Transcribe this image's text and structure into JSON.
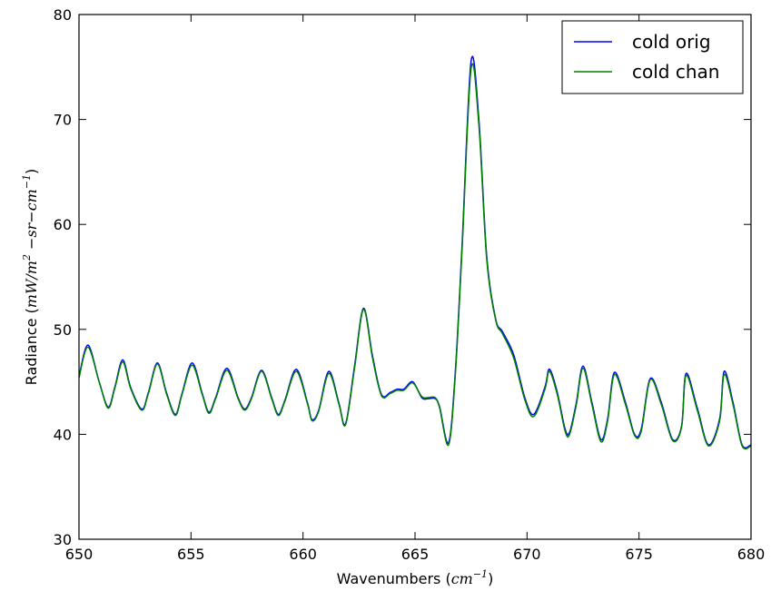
{
  "chart_data": {
    "type": "line",
    "xlabel_text": "Wavenumbers (",
    "xlabel_math": "cm",
    "xlabel_sup": "−1",
    "xlabel_close": ")",
    "ylabel_text": "Radiance (",
    "ylabel_math": "mW/m",
    "ylabel_sup1": "2",
    "ylabel_math2": " −sr−cm",
    "ylabel_sup2": "−1",
    "ylabel_close": ")",
    "xlim": [
      650,
      680
    ],
    "ylim": [
      30,
      80
    ],
    "xticks": [
      650,
      655,
      660,
      665,
      670,
      675,
      680
    ],
    "yticks": [
      30,
      40,
      50,
      60,
      70,
      80
    ],
    "xtick_labels": [
      "650",
      "655",
      "660",
      "665",
      "670",
      "675",
      "680"
    ],
    "ytick_labels": [
      "30",
      "40",
      "50",
      "60",
      "70",
      "80"
    ],
    "grid": false,
    "legend_position": "top-right",
    "series": [
      {
        "name": "cold orig",
        "color": "#0000ff",
        "x": [
          650.0,
          650.4,
          650.9,
          651.3,
          651.6,
          651.95,
          652.3,
          652.8,
          653.1,
          653.5,
          653.9,
          654.3,
          654.6,
          655.05,
          655.5,
          655.8,
          656.1,
          656.6,
          657.1,
          657.4,
          657.7,
          658.15,
          658.6,
          658.9,
          659.2,
          659.7,
          660.2,
          660.4,
          660.7,
          661.15,
          661.6,
          661.9,
          662.3,
          662.7,
          663.1,
          663.5,
          663.9,
          664.2,
          664.5,
          664.9,
          665.3,
          665.6,
          665.9,
          666.1,
          666.5,
          666.8,
          667.1,
          667.5,
          667.85,
          668.2,
          668.6,
          668.9,
          669.4,
          669.9,
          670.3,
          670.8,
          671.0,
          671.35,
          671.7,
          671.9,
          672.2,
          672.5,
          672.9,
          673.3,
          673.6,
          673.9,
          674.4,
          674.8,
          675.1,
          675.5,
          676.0,
          676.5,
          676.9,
          677.1,
          677.6,
          678.1,
          678.6,
          678.8,
          679.2,
          679.6,
          680.0
        ],
        "y": [
          45.5,
          48.5,
          45.0,
          42.6,
          44.5,
          47.1,
          44.5,
          42.4,
          44.0,
          46.8,
          44.0,
          41.9,
          43.9,
          46.8,
          43.9,
          42.1,
          43.5,
          46.3,
          43.5,
          42.4,
          43.5,
          46.1,
          43.5,
          41.9,
          43.3,
          46.2,
          43.0,
          41.4,
          42.3,
          46.0,
          43.0,
          41.0,
          46.5,
          52.0,
          47.5,
          43.8,
          44.0,
          44.3,
          44.3,
          45.0,
          43.5,
          43.4,
          43.4,
          42.6,
          39.2,
          46.0,
          58.0,
          75.5,
          70.0,
          57.0,
          51.0,
          49.8,
          47.6,
          43.5,
          41.9,
          44.5,
          46.2,
          44.0,
          40.5,
          40.2,
          43.0,
          46.5,
          43.0,
          39.5,
          41.5,
          45.9,
          43.0,
          40.0,
          40.5,
          45.3,
          43.0,
          39.5,
          40.8,
          45.8,
          42.5,
          39.0,
          41.5,
          46.0,
          43.0,
          39.0,
          39.0
        ]
      },
      {
        "name": "cold chan",
        "color": "#008000",
        "x": [
          650.0,
          650.4,
          650.9,
          651.3,
          651.6,
          651.95,
          652.3,
          652.8,
          653.1,
          653.5,
          653.9,
          654.3,
          654.6,
          655.05,
          655.5,
          655.8,
          656.1,
          656.6,
          657.1,
          657.4,
          657.7,
          658.15,
          658.6,
          658.9,
          659.2,
          659.7,
          660.2,
          660.4,
          660.7,
          661.15,
          661.6,
          661.9,
          662.3,
          662.7,
          663.1,
          663.5,
          663.9,
          664.2,
          664.5,
          664.9,
          665.3,
          665.6,
          665.9,
          666.1,
          666.5,
          666.8,
          667.1,
          667.5,
          667.85,
          668.2,
          668.6,
          668.9,
          669.4,
          669.9,
          670.3,
          670.8,
          671.0,
          671.35,
          671.7,
          671.9,
          672.2,
          672.5,
          672.9,
          673.3,
          673.6,
          673.9,
          674.4,
          674.8,
          675.1,
          675.5,
          676.0,
          676.5,
          676.9,
          677.1,
          677.6,
          678.1,
          678.6,
          678.8,
          679.2,
          679.6,
          680.0
        ],
        "y": [
          45.4,
          48.3,
          45.0,
          42.5,
          44.4,
          46.9,
          44.4,
          42.3,
          43.9,
          46.7,
          43.9,
          41.8,
          43.8,
          46.6,
          43.8,
          42.0,
          43.4,
          46.1,
          43.4,
          42.3,
          43.4,
          46.0,
          43.4,
          41.8,
          43.2,
          46.0,
          42.9,
          41.3,
          42.2,
          45.8,
          42.9,
          40.9,
          46.3,
          51.9,
          47.3,
          43.7,
          43.9,
          44.2,
          44.2,
          44.9,
          43.6,
          43.5,
          43.5,
          42.5,
          39.0,
          45.7,
          57.6,
          74.8,
          69.5,
          56.7,
          50.9,
          49.6,
          47.3,
          43.3,
          41.7,
          44.3,
          46.0,
          43.8,
          40.3,
          40.0,
          42.8,
          46.3,
          42.8,
          39.3,
          41.3,
          45.7,
          42.8,
          39.9,
          40.3,
          45.2,
          42.8,
          39.4,
          40.7,
          45.6,
          42.3,
          38.9,
          41.3,
          45.7,
          42.8,
          38.9,
          38.9
        ]
      }
    ]
  }
}
